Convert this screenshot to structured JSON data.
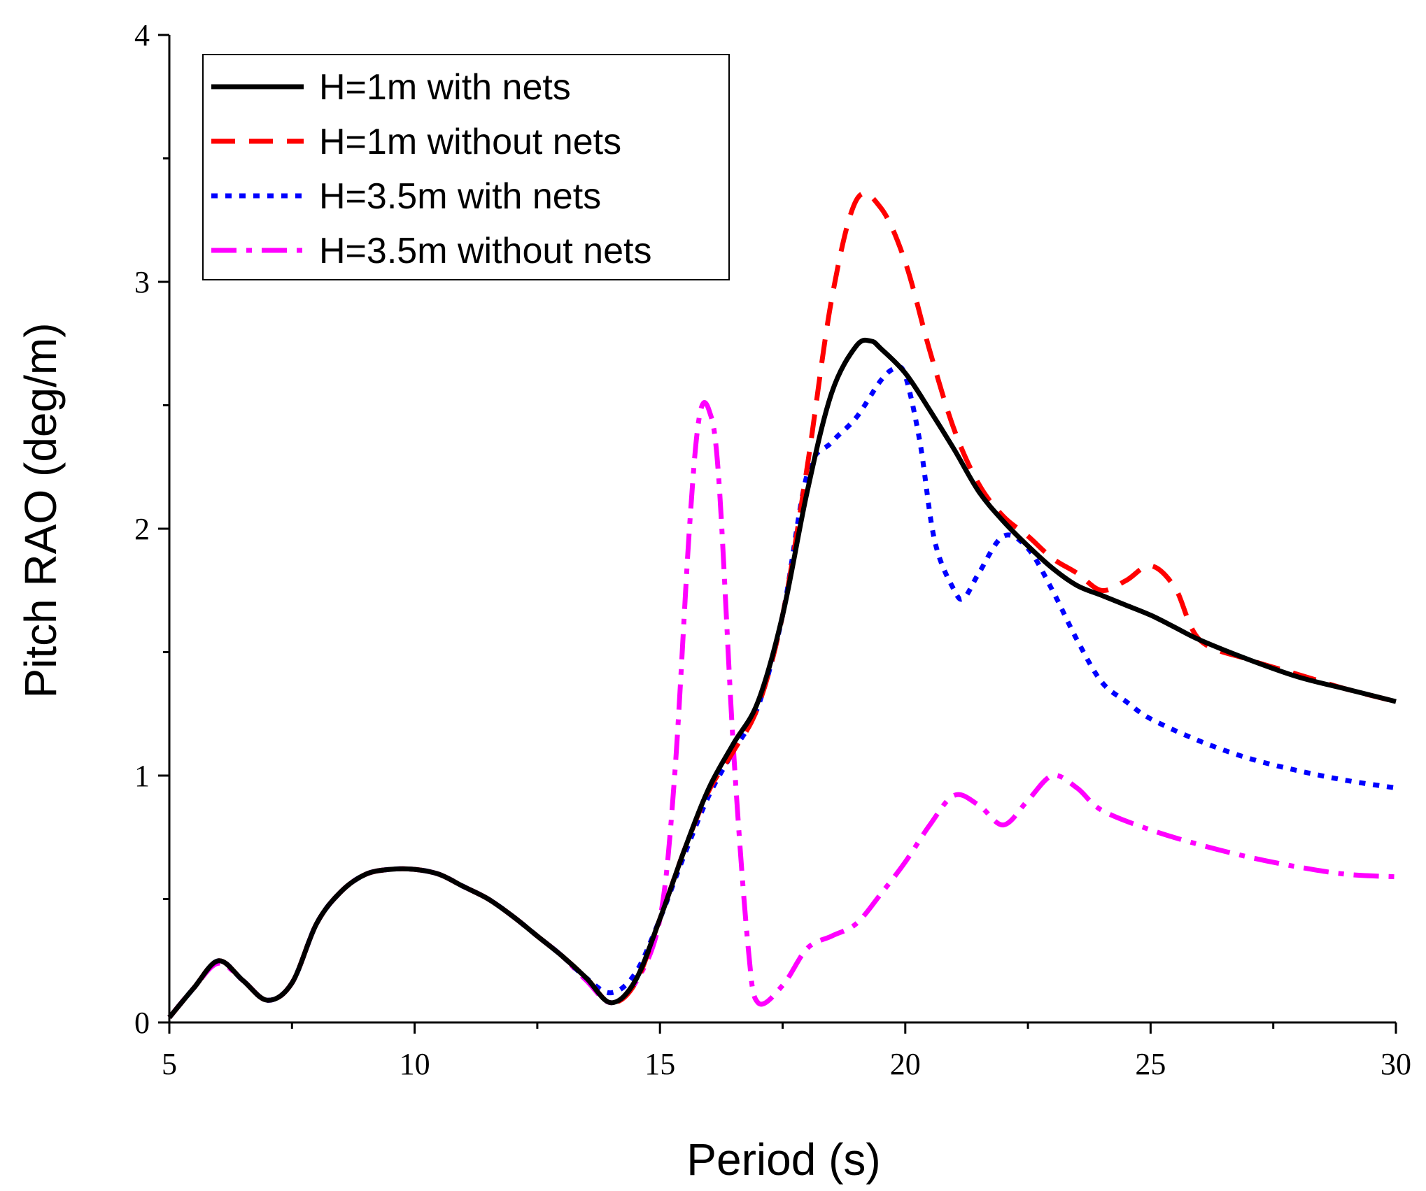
{
  "chart_data": {
    "type": "line",
    "xlabel": "Period (s)",
    "ylabel": "Pitch RAO (deg/m)",
    "xlim": [
      5,
      30
    ],
    "ylim": [
      0,
      4
    ],
    "xticks": [
      "5",
      "10",
      "15",
      "20",
      "25",
      "30"
    ],
    "yticks": [
      "0",
      "1",
      "2",
      "3",
      "4"
    ],
    "grid": false,
    "legend_position": "top-left",
    "series": [
      {
        "name": "H=1m with nets",
        "color": "#000000",
        "dash": "solid",
        "x": [
          5,
          5.5,
          6,
          6.5,
          7,
          7.5,
          8,
          8.5,
          9,
          9.5,
          10,
          10.5,
          11,
          11.5,
          12,
          12.5,
          13,
          13.5,
          14,
          14.5,
          15,
          15.5,
          16,
          16.5,
          17,
          17.5,
          18,
          18.5,
          19,
          19.3,
          19.5,
          20,
          20.5,
          21,
          21.5,
          22,
          22.5,
          23,
          23.5,
          24,
          24.5,
          25,
          25.5,
          26,
          27,
          28,
          29,
          30
        ],
        "values": [
          0.02,
          0.14,
          0.25,
          0.17,
          0.09,
          0.16,
          0.4,
          0.53,
          0.6,
          0.62,
          0.62,
          0.6,
          0.55,
          0.5,
          0.43,
          0.35,
          0.27,
          0.18,
          0.08,
          0.17,
          0.42,
          0.7,
          0.95,
          1.13,
          1.3,
          1.65,
          2.15,
          2.55,
          2.74,
          2.76,
          2.73,
          2.63,
          2.48,
          2.32,
          2.15,
          2.03,
          1.93,
          1.84,
          1.77,
          1.73,
          1.69,
          1.65,
          1.6,
          1.55,
          1.47,
          1.4,
          1.35,
          1.3
        ]
      },
      {
        "name": "H=1m without nets",
        "color": "#ff0000",
        "dash": "long-dash",
        "x": [
          5,
          5.5,
          6,
          6.5,
          7,
          7.5,
          8,
          8.5,
          9,
          9.5,
          10,
          10.5,
          11,
          11.5,
          12,
          12.5,
          13,
          13.5,
          14,
          14.5,
          15,
          15.5,
          16,
          16.5,
          17,
          17.5,
          18,
          18.5,
          19,
          19.5,
          20,
          20.5,
          21,
          21.5,
          22,
          22.5,
          23,
          23.5,
          24,
          24.5,
          25,
          25.5,
          26,
          27,
          28,
          29,
          30
        ],
        "values": [
          0.02,
          0.14,
          0.25,
          0.17,
          0.09,
          0.16,
          0.4,
          0.53,
          0.6,
          0.62,
          0.62,
          0.6,
          0.55,
          0.5,
          0.43,
          0.35,
          0.27,
          0.18,
          0.08,
          0.16,
          0.42,
          0.7,
          0.94,
          1.1,
          1.28,
          1.65,
          2.25,
          2.93,
          3.33,
          3.3,
          3.08,
          2.72,
          2.4,
          2.18,
          2.05,
          1.97,
          1.88,
          1.82,
          1.75,
          1.79,
          1.85,
          1.76,
          1.55,
          1.47,
          1.41,
          1.35,
          1.3
        ]
      },
      {
        "name": "H=3.5m with nets",
        "color": "#0000ff",
        "dash": "dotted",
        "x": [
          5,
          5.5,
          6,
          6.5,
          7,
          7.5,
          8,
          8.5,
          9,
          9.5,
          10,
          10.5,
          11,
          11.5,
          12,
          12.5,
          13,
          13.5,
          14,
          14.5,
          15,
          15.5,
          16,
          16.5,
          17,
          17.5,
          18,
          18.5,
          19,
          19.5,
          19.8,
          20,
          20.3,
          20.6,
          21,
          21.2,
          21.5,
          22,
          22.5,
          23,
          23.5,
          24,
          24.5,
          25,
          26,
          27,
          28,
          29,
          30
        ],
        "values": [
          0.02,
          0.14,
          0.25,
          0.17,
          0.09,
          0.16,
          0.4,
          0.53,
          0.6,
          0.62,
          0.62,
          0.6,
          0.55,
          0.5,
          0.43,
          0.35,
          0.27,
          0.18,
          0.12,
          0.2,
          0.42,
          0.68,
          0.92,
          1.1,
          1.28,
          1.65,
          2.22,
          2.35,
          2.45,
          2.6,
          2.65,
          2.62,
          2.35,
          1.95,
          1.75,
          1.72,
          1.82,
          1.97,
          1.92,
          1.75,
          1.55,
          1.38,
          1.3,
          1.23,
          1.14,
          1.07,
          1.02,
          0.98,
          0.95
        ]
      },
      {
        "name": "H=3.5m without nets",
        "color": "#ff00ff",
        "dash": "dash-dot",
        "x": [
          5,
          5.5,
          6,
          6.5,
          7,
          7.5,
          8,
          8.5,
          9,
          9.5,
          10,
          10.5,
          11,
          11.5,
          12,
          12.5,
          13,
          13.5,
          14,
          14.5,
          15,
          15.3,
          15.6,
          15.8,
          16,
          16.2,
          16.5,
          16.8,
          17,
          17.5,
          18,
          18.5,
          19,
          19.5,
          20,
          20.5,
          21,
          21.5,
          22,
          22.5,
          23,
          23.5,
          24,
          25,
          26,
          27,
          28,
          29,
          30
        ],
        "values": [
          0.02,
          0.14,
          0.24,
          0.17,
          0.09,
          0.16,
          0.4,
          0.53,
          0.6,
          0.62,
          0.62,
          0.6,
          0.55,
          0.5,
          0.43,
          0.35,
          0.27,
          0.17,
          0.08,
          0.16,
          0.42,
          1.0,
          2.0,
          2.45,
          2.48,
          2.2,
          1.1,
          0.3,
          0.08,
          0.15,
          0.3,
          0.35,
          0.4,
          0.52,
          0.65,
          0.8,
          0.92,
          0.88,
          0.8,
          0.9,
          1.0,
          0.95,
          0.86,
          0.78,
          0.72,
          0.67,
          0.63,
          0.6,
          0.59
        ]
      }
    ]
  }
}
